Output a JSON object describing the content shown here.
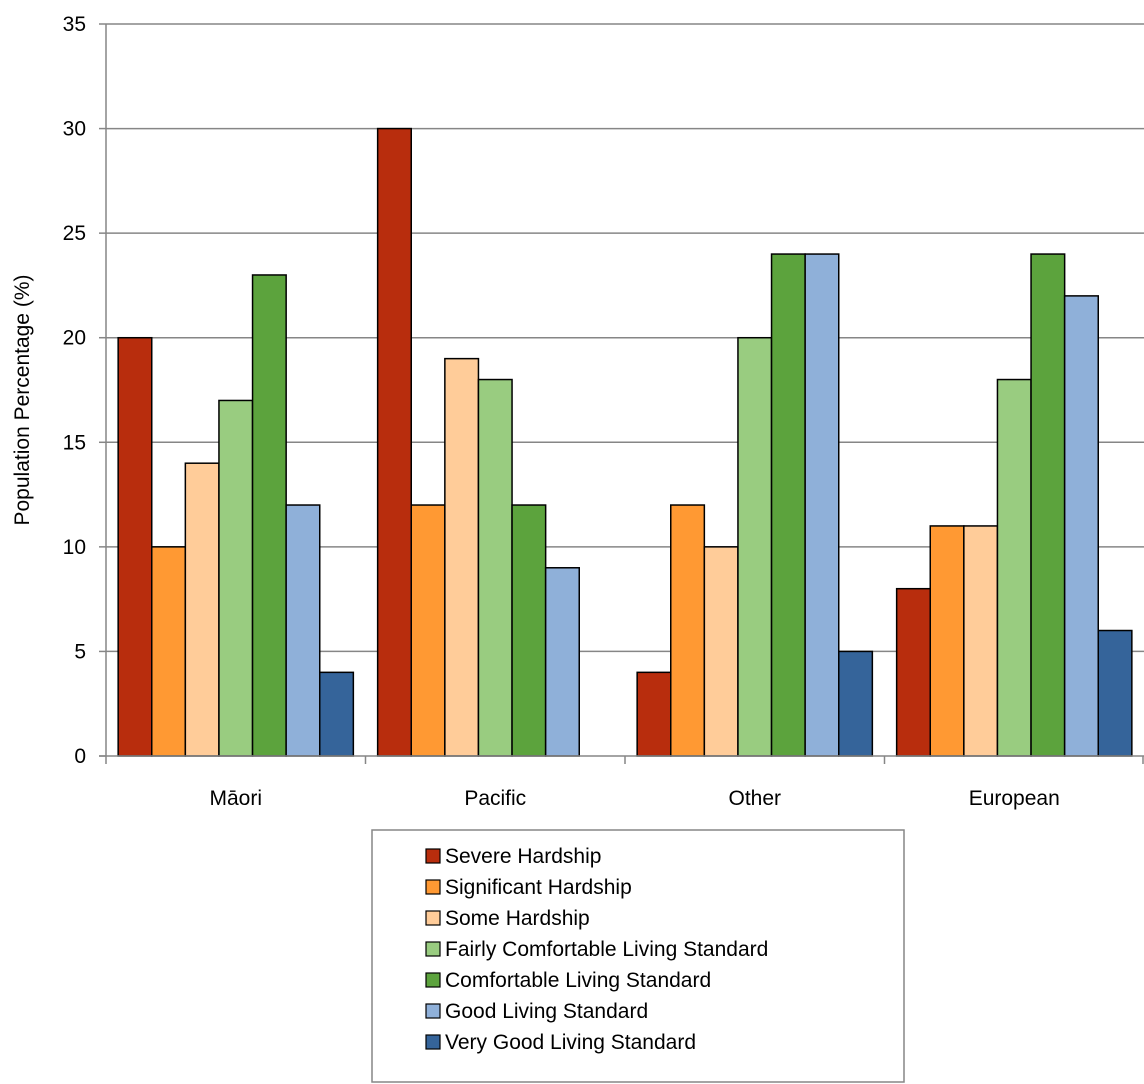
{
  "chart_data": {
    "type": "bar",
    "title": "",
    "xlabel": "",
    "ylabel": "Population Percentage (%)",
    "ylim": [
      0,
      35
    ],
    "yticks": [
      0,
      5,
      10,
      15,
      20,
      25,
      30,
      35
    ],
    "grid": true,
    "legend_position": "bottom",
    "categories": [
      "Māori",
      "Pacific",
      "Other",
      "European"
    ],
    "series": [
      {
        "name": "Severe Hardship",
        "color": "#B82D0D",
        "values": [
          20,
          30,
          4,
          8
        ]
      },
      {
        "name": "Significant Hardship",
        "color": "#FF9933",
        "values": [
          10,
          12,
          12,
          11
        ]
      },
      {
        "name": "Some Hardship",
        "color": "#FFCC99",
        "values": [
          14,
          19,
          10,
          11
        ]
      },
      {
        "name": "Fairly Comfortable Living Standard",
        "color": "#99CC80",
        "values": [
          17,
          18,
          20,
          18
        ]
      },
      {
        "name": "Comfortable Living Standard",
        "color": "#5CA33D",
        "values": [
          23,
          12,
          24,
          24
        ]
      },
      {
        "name": "Good Living Standard",
        "color": "#8FB0D9",
        "values": [
          12,
          9,
          24,
          22
        ]
      },
      {
        "name": "Very Good Living Standard",
        "color": "#35649A",
        "values": [
          4,
          null,
          5,
          6
        ]
      }
    ]
  }
}
